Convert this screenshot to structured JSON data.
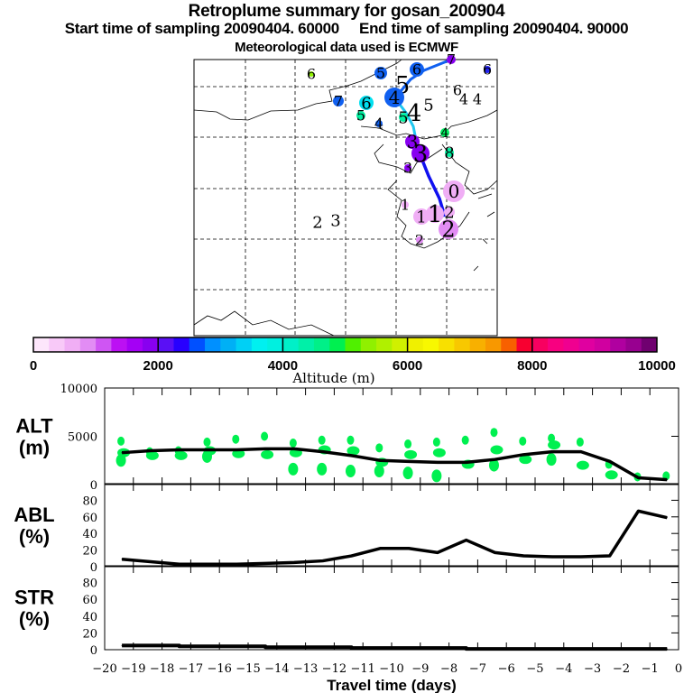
{
  "header": {
    "title": "Retroplume summary for gosan_200904",
    "subtitle": "Start time of sampling 20090404. 60000     End time of sampling 20090404. 90000",
    "met": "Meteorological data used is ECMWF"
  },
  "map": {
    "markers": [
      "6",
      "5",
      "6",
      "7",
      "6",
      "5",
      "5",
      "4",
      "6",
      "7",
      "6",
      "5",
      "4",
      "4",
      "5",
      "4",
      "4",
      "4",
      "3",
      "3",
      "8",
      "3",
      "1",
      "0",
      "1",
      "1",
      "2",
      "2",
      "2",
      "3",
      "2"
    ]
  },
  "colorbar": {
    "label": "Altitude (m)",
    "ticks": [
      "0",
      "2000",
      "4000",
      "6000",
      "8000",
      "10000"
    ],
    "colors": [
      "#fde6fb",
      "#f8c9f8",
      "#f0aef5",
      "#e28cf4",
      "#cf55f3",
      "#bc10f3",
      "#a400f5",
      "#8800f0",
      "#5a10f5",
      "#2800ff",
      "#0050ff",
      "#0090ff",
      "#00b0f5",
      "#00d0f5",
      "#00f0f0",
      "#00f0e0",
      "#00f0c8",
      "#00f0a8",
      "#00f088",
      "#00f050",
      "#50f000",
      "#90f000",
      "#b0f000",
      "#d0f000",
      "#f0f000",
      "#f8f800",
      "#f8e000",
      "#f8c800",
      "#f8b000",
      "#f89800",
      "#f86000",
      "#f80030",
      "#f80060",
      "#f80080",
      "#f00090",
      "#e000a0",
      "#d000a0",
      "#b000a0",
      "#980090",
      "#700070"
    ]
  },
  "chart_data": [
    {
      "type": "line",
      "name": "ALT",
      "ylabel": "ALT (m)",
      "ylim": [
        0,
        10000
      ],
      "yticks": [
        "10000",
        "5000",
        "0"
      ],
      "x": [
        -19.4,
        -18.4,
        -17.4,
        -16.4,
        -15.4,
        -14.4,
        -13.4,
        -12.4,
        -11.4,
        -10.4,
        -9.4,
        -8.4,
        -7.4,
        -6.4,
        -5.4,
        -4.4,
        -3.4,
        -2.4,
        -1.4,
        -0.4
      ],
      "values": [
        3300,
        3500,
        3600,
        3600,
        3600,
        3700,
        3700,
        3400,
        3000,
        2500,
        2400,
        2300,
        2300,
        2600,
        3100,
        3400,
        3400,
        2400,
        700,
        500
      ],
      "cluster_color": "#00f050",
      "clusters": [
        [
          4500,
          3300,
          2500
        ],
        [
          3400,
          3000
        ],
        [
          3500,
          3000
        ],
        [
          4400,
          3500,
          2900
        ],
        [
          4700,
          3200
        ],
        [
          5000,
          3100
        ],
        [
          4300,
          3300,
          1600
        ],
        [
          4600,
          3600,
          1600
        ],
        [
          4600,
          3500,
          1400
        ],
        [
          3800,
          2300,
          1400
        ],
        [
          4200,
          3100,
          1200
        ],
        [
          4400,
          3300,
          900
        ],
        [
          4600,
          2100
        ],
        [
          5400,
          3600,
          2000
        ],
        [
          4500,
          2600
        ],
        [
          4800,
          4100,
          2600
        ],
        [
          4400,
          2000
        ],
        [
          2100,
          1000
        ],
        [
          800
        ],
        [
          900
        ]
      ]
    },
    {
      "type": "line",
      "name": "ABL",
      "ylabel": "ABL (%)",
      "ylim": [
        0,
        100
      ],
      "yticks": [
        "80",
        "60",
        "40",
        "20",
        "0"
      ],
      "x": [
        -19.4,
        -18.4,
        -17.4,
        -16.4,
        -15.4,
        -14.4,
        -13.4,
        -12.4,
        -11.4,
        -10.4,
        -9.4,
        -8.4,
        -7.4,
        -6.4,
        -5.4,
        -4.4,
        -3.4,
        -2.4,
        -1.4,
        -0.4
      ],
      "values": [
        9,
        6,
        3,
        3,
        3,
        4,
        5,
        7,
        13,
        22,
        22,
        17,
        32,
        17,
        13,
        12,
        12,
        13,
        67,
        59
      ]
    },
    {
      "type": "line",
      "name": "STR",
      "ylabel": "STR (%)",
      "ylim": [
        0,
        100
      ],
      "yticks": [
        "80",
        "60",
        "40",
        "20",
        "0"
      ],
      "x": [
        -19.4,
        -18.4,
        -17.4,
        -16.4,
        -15.4,
        -14.4,
        -13.4,
        -12.4,
        -11.4,
        -10.4,
        -9.4,
        -8.4,
        -7.4,
        -6.4,
        -5.4,
        -4.4,
        -3.4,
        -2.4,
        -1.4,
        -0.4
      ],
      "values": [
        5,
        5,
        4,
        4,
        4,
        3,
        3,
        3,
        2,
        2,
        2,
        2,
        1,
        1,
        1,
        1,
        1,
        1,
        1,
        1
      ]
    },
    {
      "xlabel": "Travel time (days)",
      "xlim": [
        -20,
        0
      ],
      "xticks": [
        "-20",
        "-19",
        "-18",
        "-17",
        "-16",
        "-15",
        "-14",
        "-13",
        "-12",
        "-11",
        "-10",
        "-9",
        "-8",
        "-7",
        "-6",
        "-5",
        "-4",
        "-3",
        "-2",
        "-1",
        "0"
      ]
    }
  ]
}
